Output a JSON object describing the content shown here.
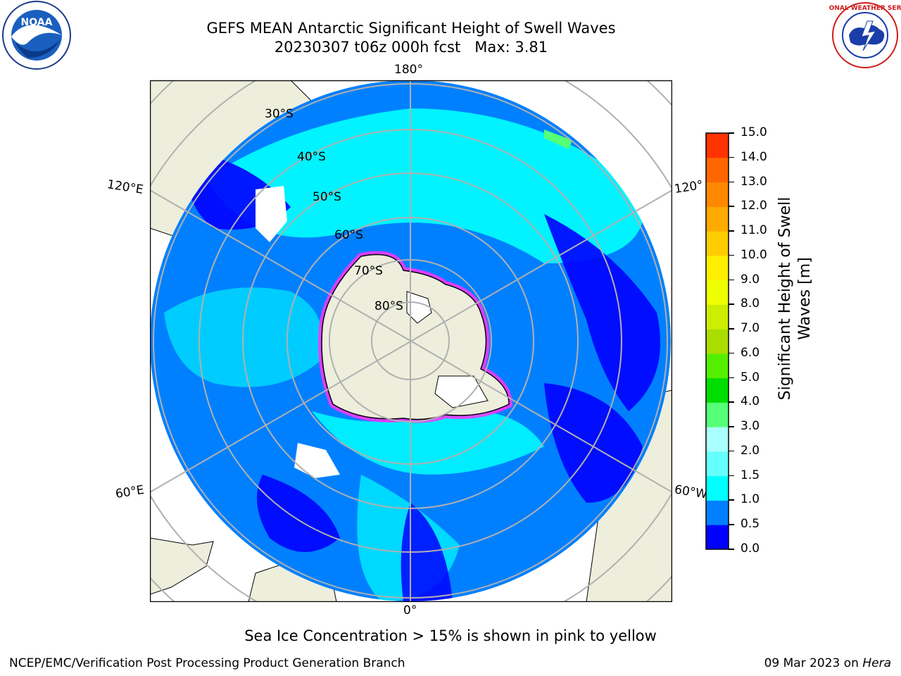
{
  "header": {
    "title": "GEFS MEAN Antarctic Significant Height of Swell Waves",
    "subtitle": "20230307 t06z 000h fcst   Max: 3.81"
  },
  "logos": {
    "left": "NOAA",
    "right": "NATIONAL WEATHER SERVICE"
  },
  "map": {
    "projection": "south-polar-stereographic",
    "meridian_labels": [
      "180°",
      "120°E",
      "120°",
      "60°E",
      "60°W",
      "0°"
    ],
    "latitude_labels": [
      "30°S",
      "40°S",
      "50°S",
      "60°S",
      "70°S",
      "80°S"
    ],
    "colors": {
      "ocean_deep_blue": "#0000ff",
      "ocean_blue": "#0080ff",
      "ocean_cyan": "#00ffff",
      "ocean_light_cyan": "#66ffff",
      "land": "#eeeedd",
      "sea_ice": "#ff33ff",
      "grid": "#b0b0b0"
    }
  },
  "colorbar": {
    "label": "Significant Height of Swell Waves [m]",
    "ticks": [
      "0.0",
      "0.5",
      "1.0",
      "1.5",
      "2.0",
      "3.0",
      "4.0",
      "5.0",
      "6.0",
      "7.0",
      "8.0",
      "9.0",
      "10.0",
      "11.0",
      "12.0",
      "13.0",
      "14.0",
      "15.0"
    ],
    "colors": [
      "#0000ff",
      "#0080ff",
      "#00ffff",
      "#66ffff",
      "#aaffff",
      "#55ff77",
      "#00dd00",
      "#55ee00",
      "#aadd00",
      "#ccee00",
      "#eeff00",
      "#ffee00",
      "#ffcc00",
      "#ffaa00",
      "#ff8800",
      "#ff6600",
      "#ff3300",
      "#ff0000"
    ]
  },
  "note": "Sea Ice Concentration > 15% is shown in pink to yellow",
  "footer": {
    "left": "NCEP/EMC/Verification Post Processing Product Generation Branch",
    "date": "09 Mar 2023 on ",
    "host": "Hera"
  }
}
